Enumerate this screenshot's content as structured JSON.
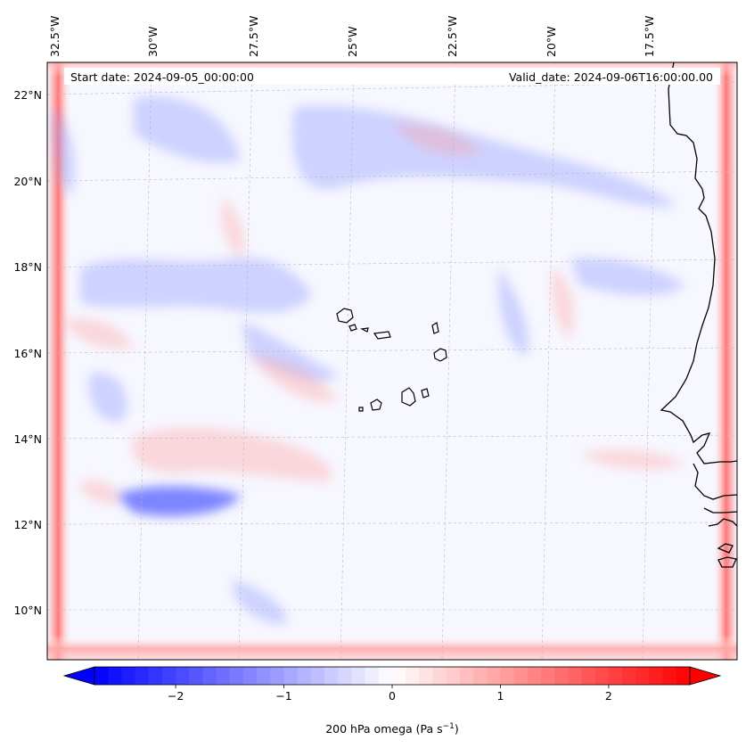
{
  "map": {
    "start_date_label": "Start date: 2024-09-05_00:00:00",
    "valid_date_label": "Valid_date: 2024-09-06T16:00:00.00",
    "lon_labels": [
      "32.5°W",
      "30°W",
      "27.5°W",
      "25°W",
      "22.5°W",
      "20°W",
      "17.5°W"
    ],
    "lat_labels": [
      "22°N",
      "20°N",
      "18°N",
      "16°N",
      "14°N",
      "12°N",
      "10°N"
    ],
    "extent": {
      "lon_min": -32.6,
      "lon_max": -15.4,
      "lat_min": 8.9,
      "lat_max": 22.8
    },
    "field_colors": {
      "negative": "#0000ff",
      "zero": "#ffffff",
      "positive": "#ff0000"
    }
  },
  "colorbar": {
    "label": "200 hPa omega (Pa s",
    "label_exponent": "−1",
    "label_close": ")",
    "vmin": -2.75,
    "vmax": 2.75,
    "ticks": [
      {
        "value": -2,
        "label": "−2"
      },
      {
        "value": -1,
        "label": "−1"
      },
      {
        "value": 0,
        "label": "0"
      },
      {
        "value": 1,
        "label": "1"
      },
      {
        "value": 2,
        "label": "2"
      }
    ]
  }
}
